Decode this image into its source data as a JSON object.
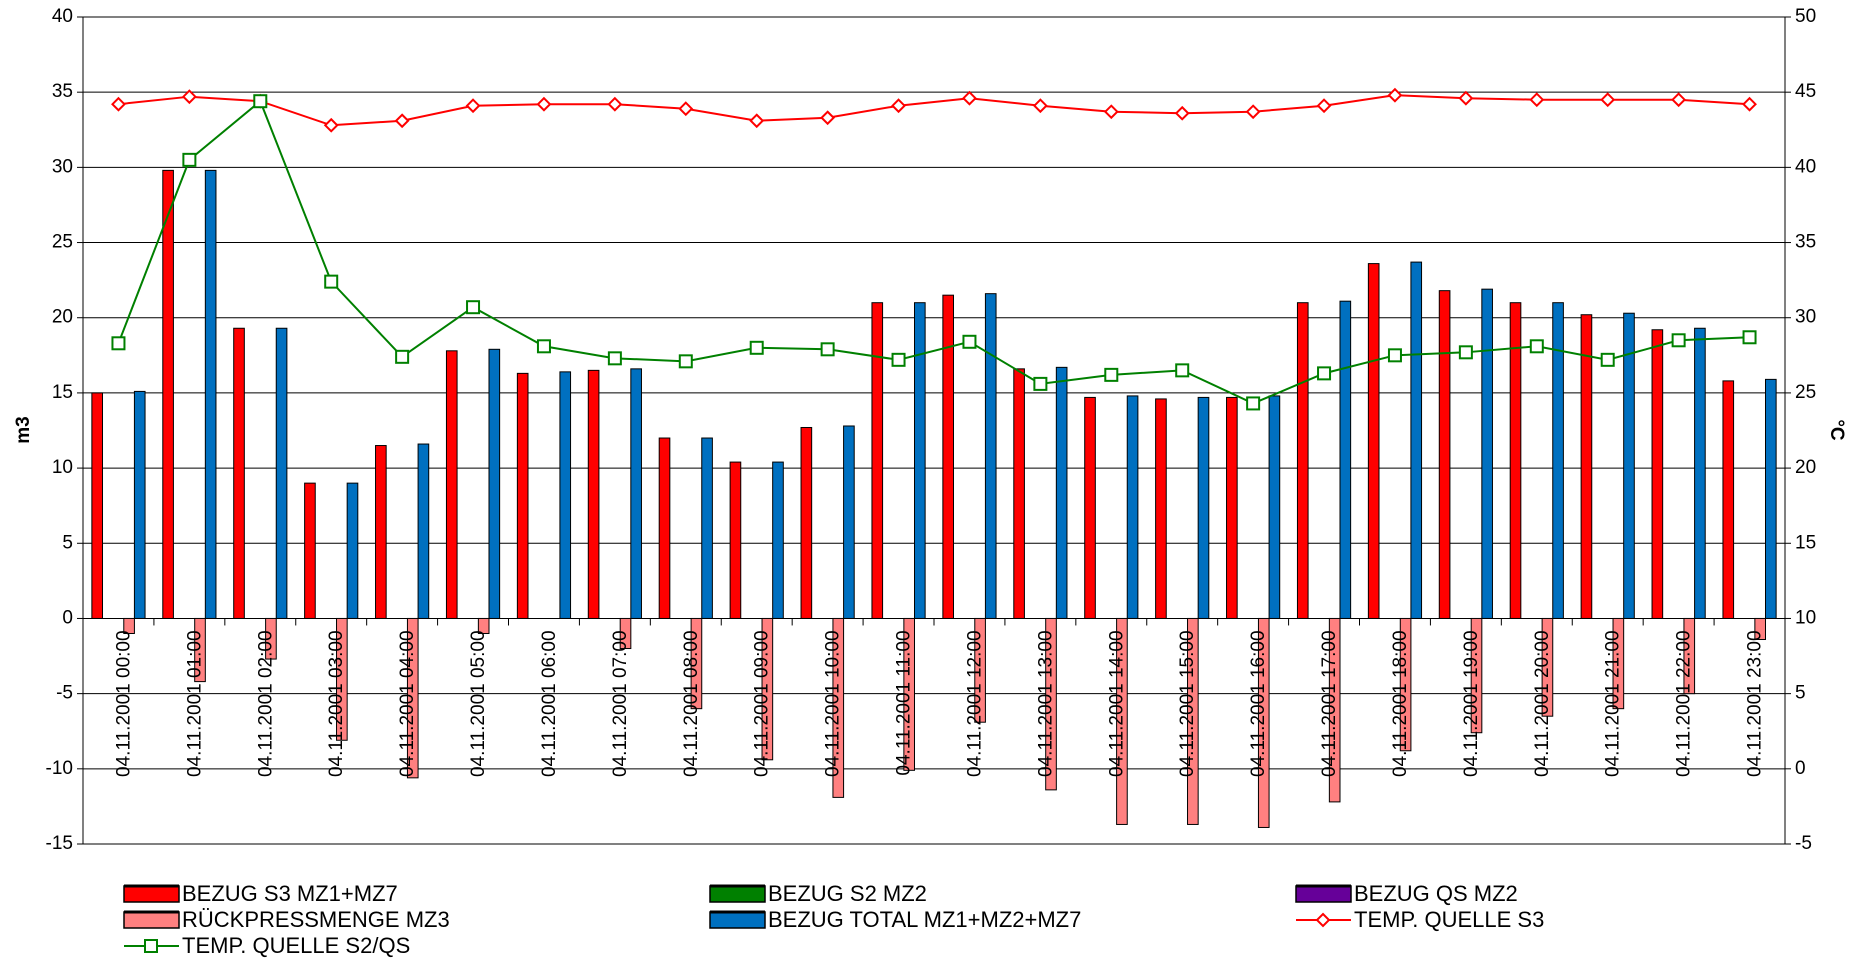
{
  "chart_data": {
    "type": "bar",
    "categories": [
      "04.11.2001 00:00",
      "04.11.2001 01:00",
      "04.11.2001 02:00",
      "04.11.2001 03:00",
      "04.11.2001 04:00",
      "04.11.2001 05:00",
      "04.11.2001 06:00",
      "04.11.2001 07:00",
      "04.11.2001 08:00",
      "04.11.2001 09:00",
      "04.11.2001 10:00",
      "04.11.2001 11:00",
      "04.11.2001 12:00",
      "04.11.2001 13:00",
      "04.11.2001 14:00",
      "04.11.2001 15:00",
      "04.11.2001 16:00",
      "04.11.2001 17:00",
      "04.11.2001 18:00",
      "04.11.2001 19:00",
      "04.11.2001 20:00",
      "04.11.2001 21:00",
      "04.11.2001 22:00",
      "04.11.2001 23:00"
    ],
    "ylabel": "m3",
    "y2label": "°C",
    "ylim": [
      -15,
      40
    ],
    "yticks": [
      -15,
      -10,
      -5,
      0,
      5,
      10,
      15,
      20,
      25,
      30,
      35,
      40
    ],
    "y2lim": [
      -5,
      50
    ],
    "y2ticks": [
      -5,
      0,
      5,
      10,
      15,
      20,
      25,
      30,
      35,
      40,
      45,
      50
    ],
    "grid": true,
    "series": [
      {
        "name": "BEZUG S3 MZ1+MZ7",
        "type": "bar",
        "color": "#ff0000",
        "values": [
          15.0,
          29.8,
          19.3,
          9.0,
          11.5,
          17.8,
          16.3,
          16.5,
          12.0,
          10.4,
          12.7,
          21.0,
          21.5,
          16.6,
          14.7,
          14.6,
          14.7,
          21.0,
          23.6,
          21.8,
          21.0,
          20.2,
          19.2,
          15.8
        ]
      },
      {
        "name": "BEZUG S2 MZ2",
        "type": "bar",
        "color": "#008000",
        "values": [
          0,
          0,
          0,
          0,
          0,
          0,
          0,
          0,
          0,
          0,
          0,
          0,
          0,
          0,
          0,
          0,
          0,
          0,
          0,
          0,
          0,
          0,
          0,
          0
        ]
      },
      {
        "name": "BEZUG QS MZ2",
        "type": "bar",
        "color": "#660099",
        "values": [
          0,
          0,
          0,
          0,
          0,
          0,
          0,
          0,
          0,
          0,
          0,
          0,
          0,
          0,
          0,
          0,
          0,
          0,
          0,
          0,
          0,
          0,
          0,
          0
        ]
      },
      {
        "name": "RÜCKPRESSMENGE MZ3",
        "type": "bar",
        "color": "#ff8080",
        "values": [
          -1.0,
          -4.2,
          -2.7,
          -8.1,
          -10.6,
          -1.0,
          0,
          -2.0,
          -6.0,
          -9.4,
          -11.9,
          -10.1,
          -6.9,
          -11.4,
          -13.7,
          -13.7,
          -13.9,
          -12.2,
          -8.8,
          -7.6,
          -6.5,
          -6.0,
          -5.0,
          -1.4
        ]
      },
      {
        "name": "BEZUG TOTAL MZ1+MZ2+MZ7",
        "type": "bar",
        "color": "#0070c0",
        "values": [
          15.1,
          29.8,
          19.3,
          9.0,
          11.6,
          17.9,
          16.4,
          16.6,
          12.0,
          10.4,
          12.8,
          21.0,
          21.6,
          16.7,
          14.8,
          14.7,
          14.8,
          21.1,
          23.7,
          21.9,
          21.0,
          20.3,
          19.3,
          15.9
        ]
      },
      {
        "name": "TEMP. QUELLE S3",
        "type": "line",
        "axis": "y2",
        "marker": "diamond",
        "color": "#ff0000",
        "values": [
          44.2,
          44.7,
          44.4,
          42.8,
          43.1,
          44.1,
          44.2,
          44.2,
          43.9,
          43.1,
          43.3,
          44.1,
          44.6,
          44.1,
          43.7,
          43.6,
          43.7,
          44.1,
          44.8,
          44.6,
          44.5,
          44.5,
          44.5,
          44.2
        ]
      },
      {
        "name": "TEMP. QUELLE S2/QS",
        "type": "line",
        "axis": "y2",
        "marker": "square",
        "color": "#008000",
        "values": [
          28.3,
          40.5,
          44.4,
          32.4,
          27.4,
          30.7,
          28.1,
          27.3,
          27.1,
          28.0,
          27.9,
          27.2,
          28.4,
          25.6,
          26.2,
          26.5,
          24.3,
          26.3,
          27.5,
          27.7,
          28.1,
          27.2,
          28.5,
          28.7
        ]
      }
    ]
  }
}
